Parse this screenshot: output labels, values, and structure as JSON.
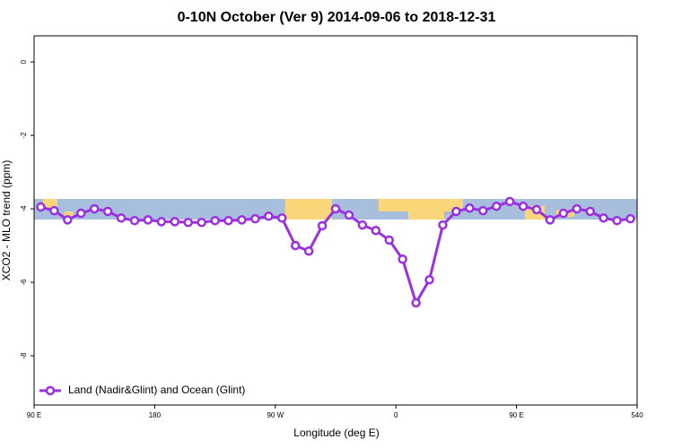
{
  "chart_data": {
    "type": "line",
    "title": "0-10N October (Ver 9)   2014-09-06 to 2018-12-31",
    "x_label": "Longitude (deg E)",
    "y_label": "XCO2 - MLO trend (ppm)",
    "x": [
      95,
      105,
      115,
      125,
      135,
      145,
      155,
      165,
      175,
      185,
      195,
      205,
      215,
      225,
      235,
      245,
      255,
      265,
      275,
      285,
      295,
      305,
      315,
      325,
      335,
      345,
      355,
      365,
      375,
      385,
      395,
      405,
      415,
      425,
      435,
      445,
      455,
      465,
      475,
      485,
      495,
      505,
      515,
      525,
      535
    ],
    "series": [
      {
        "name": "Land (Nadir&Glint) and Ocean (Glint)",
        "color": "#9b30e0",
        "values": [
          -3.95,
          -4.05,
          -4.3,
          -4.12,
          -4.0,
          -4.07,
          -4.25,
          -4.32,
          -4.3,
          -4.35,
          -4.35,
          -4.37,
          -4.37,
          -4.32,
          -4.32,
          -4.3,
          -4.27,
          -4.2,
          -4.25,
          -5.0,
          -5.15,
          -4.46,
          -4.0,
          -4.17,
          -4.44,
          -4.59,
          -4.85,
          -5.37,
          -6.56,
          -5.93,
          -4.44,
          -4.07,
          -3.98,
          -4.05,
          -3.93,
          -3.8,
          -3.93,
          -4.02,
          -4.3,
          -4.12,
          -4.0,
          -4.07,
          -4.25,
          -4.32,
          -4.27
        ]
      }
    ],
    "xlim": [
      90,
      540
    ],
    "xticks": [
      {
        "value": 90,
        "label": "90 E"
      },
      180,
      {
        "value": 270,
        "label": "90 W"
      },
      {
        "value": 360,
        "label": "0"
      },
      {
        "value": 450,
        "label": "90 E"
      },
      540
    ],
    "ylim": [
      -9.34,
      0.71
    ],
    "yticks": [
      0,
      -2,
      -4,
      -6,
      -8
    ],
    "legend": "bottom-left"
  }
}
